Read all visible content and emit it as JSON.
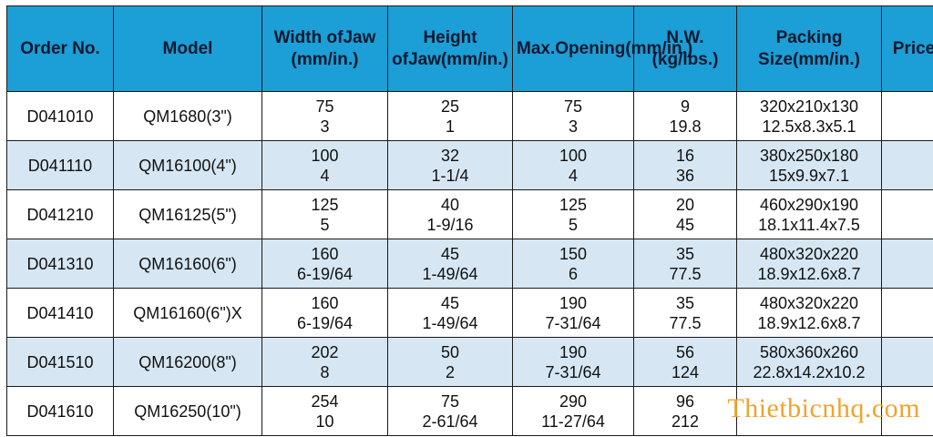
{
  "headers": [
    {
      "lines": [
        "Order No."
      ]
    },
    {
      "lines": [
        "Model"
      ]
    },
    {
      "lines": [
        "Width of",
        "Jaw (mm/in.)"
      ]
    },
    {
      "lines": [
        "Height of",
        "Jaw",
        "(mm/in.)"
      ]
    },
    {
      "lines": [
        "Max.",
        "Opening",
        "(mm/in.)"
      ]
    },
    {
      "lines": [
        "N.W.",
        "(kg/lbs.)"
      ]
    },
    {
      "lines": [
        "Packing Size",
        "(mm/in.)"
      ]
    },
    {
      "lines": [
        "Price"
      ]
    }
  ],
  "rows": [
    {
      "order": "D041010",
      "model": "QM1680(3\")",
      "width": [
        "75",
        "3"
      ],
      "height": [
        "25",
        "1"
      ],
      "opening": [
        "75",
        "3"
      ],
      "nw": [
        "9",
        "19.8"
      ],
      "packing": [
        "320x210x130",
        "12.5x8.3x5.1"
      ],
      "price": ""
    },
    {
      "order": "D041110",
      "model": "QM16100(4\")",
      "width": [
        "100",
        "4"
      ],
      "height": [
        "32",
        "1-1/4"
      ],
      "opening": [
        "100",
        "4"
      ],
      "nw": [
        "16",
        "36"
      ],
      "packing": [
        "380x250x180",
        "15x9.9x7.1"
      ],
      "price": ""
    },
    {
      "order": "D041210",
      "model": "QM16125(5\")",
      "width": [
        "125",
        "5"
      ],
      "height": [
        "40",
        "1-9/16"
      ],
      "opening": [
        "125",
        "5"
      ],
      "nw": [
        "20",
        "45"
      ],
      "packing": [
        "460x290x190",
        "18.1x11.4x7.5"
      ],
      "price": ""
    },
    {
      "order": "D041310",
      "model": "QM16160(6\")",
      "width": [
        "160",
        "6-19/64"
      ],
      "height": [
        "45",
        "1-49/64"
      ],
      "opening": [
        "150",
        "6"
      ],
      "nw": [
        "35",
        "77.5"
      ],
      "packing": [
        "480x320x220",
        "18.9x12.6x8.7"
      ],
      "price": ""
    },
    {
      "order": "D041410",
      "model": "QM16160(6\")X",
      "width": [
        "160",
        "6-19/64"
      ],
      "height": [
        "45",
        "1-49/64"
      ],
      "opening": [
        "190",
        "7-31/64"
      ],
      "nw": [
        "35",
        "77.5"
      ],
      "packing": [
        "480x320x220",
        "18.9x12.6x8.7"
      ],
      "price": ""
    },
    {
      "order": "D041510",
      "model": "QM16200(8\")",
      "width": [
        "202",
        "8"
      ],
      "height": [
        "50",
        "2"
      ],
      "opening": [
        "190",
        "7-31/64"
      ],
      "nw": [
        "56",
        "124"
      ],
      "packing": [
        "580x360x260",
        "22.8x14.2x10.2"
      ],
      "price": ""
    },
    {
      "order": "D041610",
      "model": "QM16250(10\")",
      "width": [
        "254",
        "10"
      ],
      "height": [
        "75",
        "2-61/64"
      ],
      "opening": [
        "290",
        "11-27/64"
      ],
      "nw": [
        "96",
        "212"
      ],
      "packing": [
        "",
        ""
      ],
      "price": ""
    }
  ],
  "watermark": "Thietbicnhq.com",
  "colors": {
    "header_bg": "#1c9ed6",
    "alt_row_bg": "#d6e7f3",
    "watermark": "#f2a22c"
  }
}
